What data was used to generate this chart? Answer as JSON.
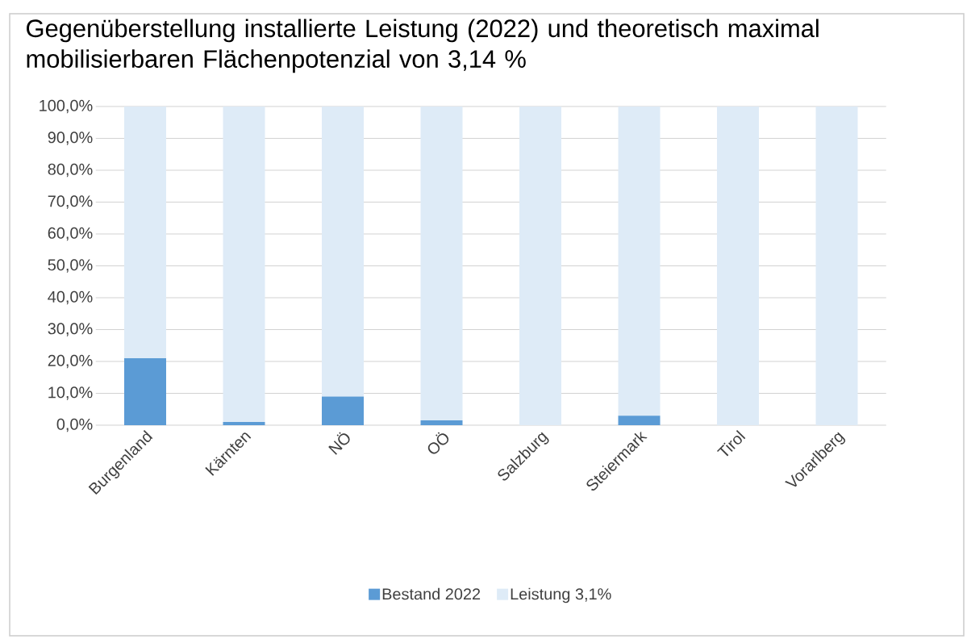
{
  "chart_data": {
    "type": "bar",
    "title": "Gegenüberstellung installierte Leistung (2022) und theoretisch maximal mobilisierbaren Flächenpotenzial von 3,14 %",
    "categories": [
      "Burgenland",
      "Kärnten",
      "NÖ",
      "OÖ",
      "Salzburg",
      "Steiermark",
      "Tirol",
      "Vorarlberg"
    ],
    "series": [
      {
        "name": "Bestand 2022",
        "color": "#5b9bd5",
        "values": [
          21,
          1,
          9,
          1.5,
          0,
          3,
          0,
          0
        ]
      },
      {
        "name": "Leistung 3,1%",
        "color": "#deebf7",
        "values": [
          79,
          99,
          91,
          98.5,
          100,
          97,
          100,
          100
        ]
      }
    ],
    "stacked": true,
    "ylim": [
      0,
      100
    ],
    "yticks": [
      {
        "value": 0,
        "label": "0,0%"
      },
      {
        "value": 10,
        "label": "10,0%"
      },
      {
        "value": 20,
        "label": "20,0%"
      },
      {
        "value": 30,
        "label": "30,0%"
      },
      {
        "value": 40,
        "label": "40,0%"
      },
      {
        "value": 50,
        "label": "50,0%"
      },
      {
        "value": 60,
        "label": "60,0%"
      },
      {
        "value": 70,
        "label": "70,0%"
      },
      {
        "value": 80,
        "label": "80,0%"
      },
      {
        "value": 90,
        "label": "90,0%"
      },
      {
        "value": 100,
        "label": "100,0%"
      }
    ],
    "grid": "y",
    "legend": "bottom"
  }
}
